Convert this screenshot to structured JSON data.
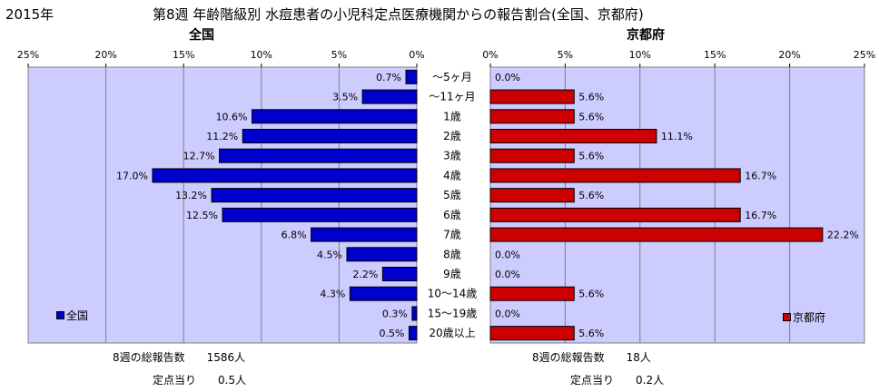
{
  "header": {
    "year": "2015年",
    "title": "第8週 年齢階級別 水痘患者の小児科定点医療機関からの報告割合(全国、京都府)"
  },
  "colors": {
    "plot_bg": "#ccccff",
    "left_bar": "#0000cc",
    "right_bar": "#cc0000",
    "grid": "#808080"
  },
  "chart_data": [
    {
      "type": "bar",
      "orientation": "horizontal",
      "title": "全国",
      "x_direction": "reversed",
      "xlim": [
        0,
        25
      ],
      "x_ticks": [
        "0%",
        "5%",
        "10%",
        "15%",
        "20%",
        "25%"
      ],
      "categories": [
        "～5ヶ月",
        "～11ヶ月",
        "1歳",
        "2歳",
        "3歳",
        "4歳",
        "5歳",
        "6歳",
        "7歳",
        "8歳",
        "9歳",
        "10～14歳",
        "15～19歳",
        "20歳以上"
      ],
      "series": [
        {
          "name": "全国",
          "values": [
            0.7,
            3.5,
            10.6,
            11.2,
            12.7,
            17.0,
            13.2,
            12.5,
            6.8,
            4.5,
            2.2,
            4.3,
            0.3,
            0.5
          ],
          "labels": [
            "0.7%",
            "3.5%",
            "10.6%",
            "11.2%",
            "12.7%",
            "17.0%",
            "13.2%",
            "12.5%",
            "6.8%",
            "4.5%",
            "2.2%",
            "4.3%",
            "0.3%",
            "0.5%"
          ]
        }
      ],
      "legend": "bottom-left",
      "grid": true
    },
    {
      "type": "bar",
      "orientation": "horizontal",
      "title": "京都府",
      "xlim": [
        0,
        25
      ],
      "x_ticks": [
        "0%",
        "5%",
        "10%",
        "15%",
        "20%",
        "25%"
      ],
      "categories": [
        "～5ヶ月",
        "～11ヶ月",
        "1歳",
        "2歳",
        "3歳",
        "4歳",
        "5歳",
        "6歳",
        "7歳",
        "8歳",
        "9歳",
        "10～14歳",
        "15～19歳",
        "20歳以上"
      ],
      "series": [
        {
          "name": "京都府",
          "values": [
            0.0,
            5.6,
            5.6,
            11.1,
            5.6,
            16.7,
            5.6,
            16.7,
            22.2,
            0.0,
            0.0,
            5.6,
            0.0,
            5.6
          ],
          "labels": [
            "0.0%",
            "5.6%",
            "5.6%",
            "11.1%",
            "5.6%",
            "16.7%",
            "5.6%",
            "16.7%",
            "22.2%",
            "0.0%",
            "0.0%",
            "5.6%",
            "0.0%",
            "5.6%"
          ]
        }
      ],
      "legend": "bottom-right",
      "grid": true
    }
  ],
  "footer": {
    "left_total": "8週の総報告数　　1586人",
    "left_per_site": "定点当り　　0.5人",
    "right_total": "8週の総報告数　　18人",
    "right_per_site": "定点当り　　0.2人"
  }
}
